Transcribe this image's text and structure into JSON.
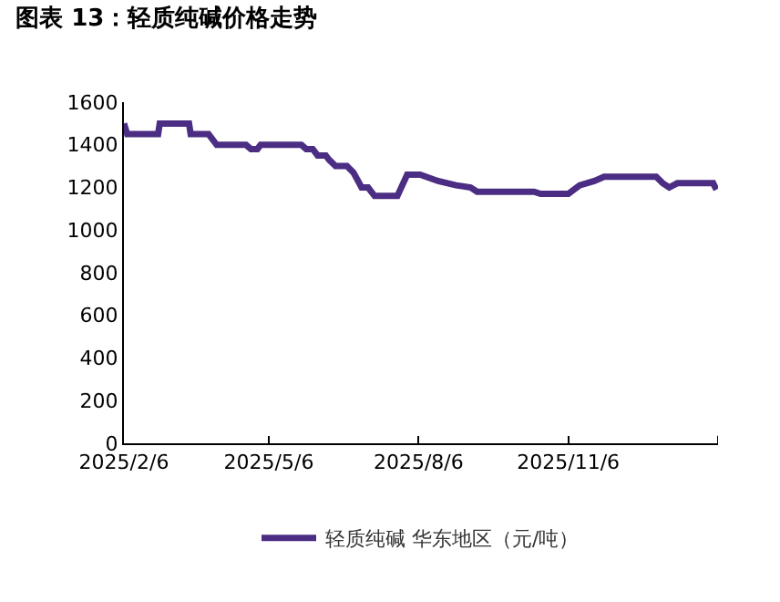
{
  "chart_data": {
    "type": "line",
    "title": "图表 13：轻质纯碱价格走势",
    "x": [
      "2025-02-06",
      "2025-02-08",
      "2025-02-27",
      "2025-02-28",
      "2025-03-18",
      "2025-03-19",
      "2025-03-30",
      "2025-04-04",
      "2025-04-22",
      "2025-04-25",
      "2025-04-29",
      "2025-05-01",
      "2025-05-26",
      "2025-05-29",
      "2025-06-02",
      "2025-06-05",
      "2025-06-10",
      "2025-06-12",
      "2025-06-16",
      "2025-06-23",
      "2025-06-27",
      "2025-07-02",
      "2025-07-06",
      "2025-07-10",
      "2025-07-24",
      "2025-07-30",
      "2025-08-07",
      "2025-08-18",
      "2025-08-29",
      "2025-09-07",
      "2025-09-11",
      "2025-10-16",
      "2025-10-20",
      "2025-11-06",
      "2025-11-13",
      "2025-11-22",
      "2025-11-28",
      "2025-12-30",
      "2026-01-03",
      "2026-01-07",
      "2026-01-12",
      "2026-02-03",
      "2026-02-05"
    ],
    "series": [
      {
        "name": "轻质纯碱 华东地区（元/吨）",
        "color": "#4b2e83",
        "values": [
          1500,
          1450,
          1450,
          1500,
          1500,
          1450,
          1450,
          1400,
          1400,
          1380,
          1380,
          1400,
          1400,
          1380,
          1380,
          1350,
          1350,
          1330,
          1300,
          1300,
          1270,
          1200,
          1200,
          1160,
          1160,
          1260,
          1260,
          1230,
          1210,
          1200,
          1180,
          1180,
          1170,
          1170,
          1210,
          1230,
          1250,
          1250,
          1220,
          1200,
          1220,
          1220,
          1190
        ]
      }
    ],
    "xlim": [
      "2025-02-06",
      "2026-02-06"
    ],
    "xticks": [
      {
        "value": "2025-02-06",
        "label": "2025/2/6"
      },
      {
        "value": "2025-05-06",
        "label": "2025/5/6"
      },
      {
        "value": "2025-08-06",
        "label": "2025/8/6"
      },
      {
        "value": "2025-11-06",
        "label": "2025/11/6"
      },
      {
        "value": "2026-02-06",
        "label": null
      }
    ],
    "ylim": [
      0,
      1600
    ],
    "yticks": [
      0,
      200,
      400,
      600,
      800,
      1000,
      1200,
      1400,
      1600
    ],
    "grid": false,
    "legend": "bottom",
    "marker": "none",
    "line_style": "solid"
  }
}
